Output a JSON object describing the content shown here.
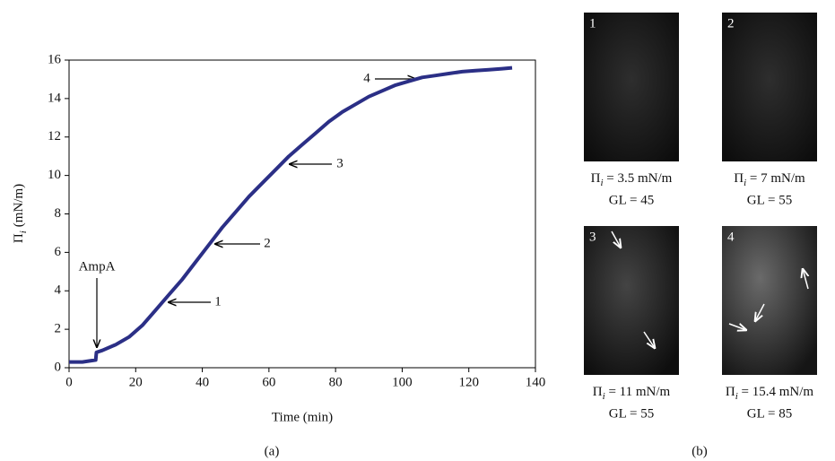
{
  "chart_data": {
    "type": "line",
    "x_label": "Time (min)",
    "y_label": {
      "symbol": "Π",
      "subscript": "i",
      "unit": "(mN/m)"
    },
    "x": [
      0,
      2,
      4,
      6,
      8,
      8.2,
      10,
      14,
      18,
      22,
      26,
      30,
      34,
      38,
      42,
      46,
      50,
      54,
      58,
      62,
      66,
      70,
      74,
      78,
      82,
      86,
      90,
      94,
      98,
      102,
      106,
      110,
      114,
      118,
      122,
      126,
      130,
      133
    ],
    "series": [
      {
        "color": "#2b2f86",
        "values": [
          0.3,
          0.3,
          0.3,
          0.35,
          0.4,
          0.8,
          0.9,
          1.2,
          1.6,
          2.2,
          3.0,
          3.8,
          4.6,
          5.5,
          6.4,
          7.3,
          8.1,
          8.9,
          9.6,
          10.3,
          11.0,
          11.6,
          12.2,
          12.8,
          13.3,
          13.7,
          14.1,
          14.4,
          14.7,
          14.9,
          15.1,
          15.2,
          15.3,
          15.4,
          15.45,
          15.5,
          15.55,
          15.6
        ]
      }
    ],
    "xlim": [
      0,
      140
    ],
    "xticks": [
      0,
      20,
      40,
      60,
      80,
      100,
      120,
      140
    ],
    "ylim": [
      0,
      16
    ],
    "yticks": [
      0,
      2,
      4,
      6,
      8,
      10,
      12,
      14,
      16
    ],
    "annotations": [
      "AmpA",
      "1",
      "2",
      "3",
      "4"
    ],
    "panel_label": "(a)"
  },
  "images": {
    "panel_label": "(b)",
    "panels": [
      {
        "label": "1",
        "pressure": {
          "symbol": "Π",
          "subscript": "i",
          "text": " = 3.5 mN/m"
        },
        "gl": "GL = 45"
      },
      {
        "label": "2",
        "pressure": {
          "symbol": "Π",
          "subscript": "i",
          "text": " = 7 mN/m"
        },
        "gl": "GL = 55"
      },
      {
        "label": "3",
        "pressure": {
          "symbol": "Π",
          "subscript": "i",
          "text": " = 11 mN/m"
        },
        "gl": "GL = 55"
      },
      {
        "label": "4",
        "pressure": {
          "symbol": "Π",
          "subscript": "i",
          "text": " = 15.4 mN/m"
        },
        "gl": "GL = 85"
      }
    ]
  }
}
